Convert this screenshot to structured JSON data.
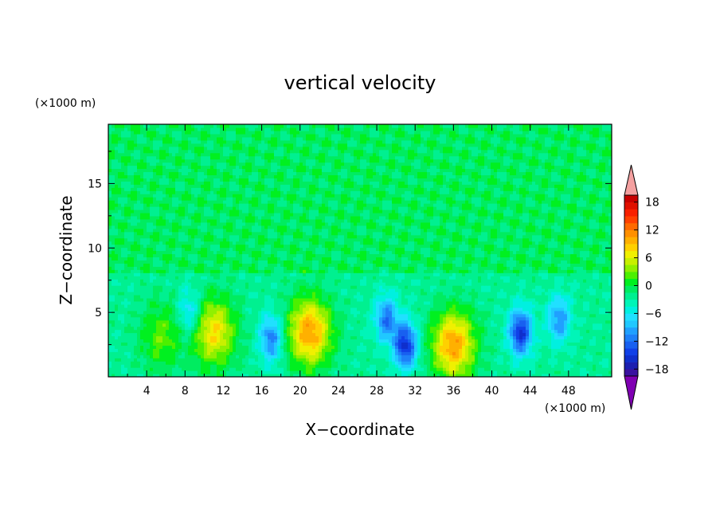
{
  "chart_data": {
    "type": "heatmap",
    "title": "vertical velocity",
    "xlabel": "X−coordinate",
    "ylabel": "Z−coordinate",
    "x_unit": "(×1000 m)",
    "y_unit": "(×1000 m)",
    "xlim": [
      0,
      52.5
    ],
    "ylim": [
      0,
      19.6
    ],
    "x_ticks": [
      4,
      8,
      12,
      16,
      20,
      24,
      28,
      32,
      36,
      40,
      44,
      48
    ],
    "y_ticks": [
      5,
      10,
      15
    ],
    "colorbar": {
      "levels": [
        -21,
        -19.5,
        -18,
        -16.5,
        -15,
        -13.5,
        -12,
        -10.5,
        -9,
        -7.5,
        -6,
        -4.5,
        -3,
        -1.5,
        0,
        1.5,
        3,
        4.5,
        6,
        7.5,
        9,
        10.5,
        12,
        13.5,
        15,
        16.5,
        18,
        19.5,
        21
      ],
      "tick_labels": [
        "18",
        "12",
        "6",
        "0",
        "−6",
        "−12",
        "−18"
      ],
      "tick_values": [
        18,
        12,
        6,
        0,
        -6,
        -12,
        -18
      ],
      "extend": "both",
      "colors": [
        "#7f00b2",
        "#3a12a0",
        "#1c1fb0",
        "#0f2fcc",
        "#1040e8",
        "#1860f0",
        "#1e80f8",
        "#20a0ff",
        "#20c8ff",
        "#20e0ff",
        "#00f0e0",
        "#00f5b8",
        "#00f090",
        "#00ec60",
        "#00f020",
        "#4cf000",
        "#90f000",
        "#c8f000",
        "#f0f000",
        "#ffd000",
        "#ffb000",
        "#ff9000",
        "#ff6a00",
        "#ff4000",
        "#f82000",
        "#e01000",
        "#c80000",
        "#f4a0a0"
      ]
    },
    "features": [
      {
        "kind": "updraft",
        "x": 5.5,
        "z": 3.2,
        "peak": 5
      },
      {
        "kind": "updraft",
        "x": 11,
        "z": 3.5,
        "peak": 10
      },
      {
        "kind": "updraft",
        "x": 21,
        "z": 3.5,
        "peak": 13
      },
      {
        "kind": "updraft",
        "x": 36,
        "z": 2.5,
        "peak": 13
      },
      {
        "kind": "downdraft",
        "x": 8.5,
        "z": 5,
        "peak": -6
      },
      {
        "kind": "downdraft",
        "x": 17,
        "z": 3,
        "peak": -9
      },
      {
        "kind": "downdraft",
        "x": 29,
        "z": 4.5,
        "peak": -9
      },
      {
        "kind": "downdraft",
        "x": 31,
        "z": 2.5,
        "peak": -13
      },
      {
        "kind": "downdraft",
        "x": 43,
        "z": 3.5,
        "peak": -13
      },
      {
        "kind": "downdraft",
        "x": 47,
        "z": 4.5,
        "peak": -8
      }
    ]
  }
}
